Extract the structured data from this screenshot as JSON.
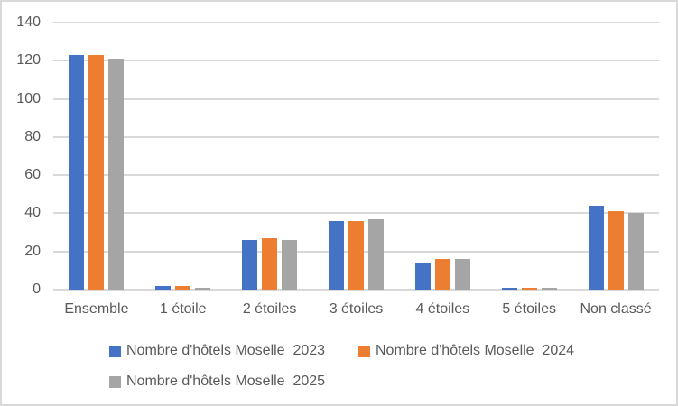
{
  "chart_data": {
    "type": "bar",
    "title": "",
    "xlabel": "",
    "ylabel": "",
    "categories": [
      "Ensemble",
      "1 étoile",
      "2 étoiles",
      "3 étoiles",
      "4 étoiles",
      "5 étoiles",
      "Non classé"
    ],
    "series": [
      {
        "name": "Nombre d'hôtels Moselle  2023",
        "color": "#4472C4",
        "values": [
          123,
          2,
          26,
          36,
          14,
          1,
          44
        ]
      },
      {
        "name": "Nombre d'hôtels Moselle  2024",
        "color": "#ED7D31",
        "values": [
          123,
          2,
          27,
          36,
          16,
          1,
          41
        ]
      },
      {
        "name": "Nombre d'hôtels Moselle  2025",
        "color": "#A5A5A5",
        "values": [
          121,
          1,
          26,
          37,
          16,
          1,
          40
        ]
      }
    ],
    "ylim": [
      0,
      140
    ],
    "y_ticks": [
      0,
      20,
      40,
      60,
      80,
      100,
      120,
      140
    ],
    "grid": true,
    "legend_position": "bottom"
  },
  "colors": {
    "series_2023": "#4472C4",
    "series_2024": "#ED7D31",
    "series_2025": "#A5A5A5",
    "gridline": "#D9D9D9",
    "axis_text": "#595959",
    "border": "#D9D9D9",
    "background": "#FFFFFF"
  }
}
